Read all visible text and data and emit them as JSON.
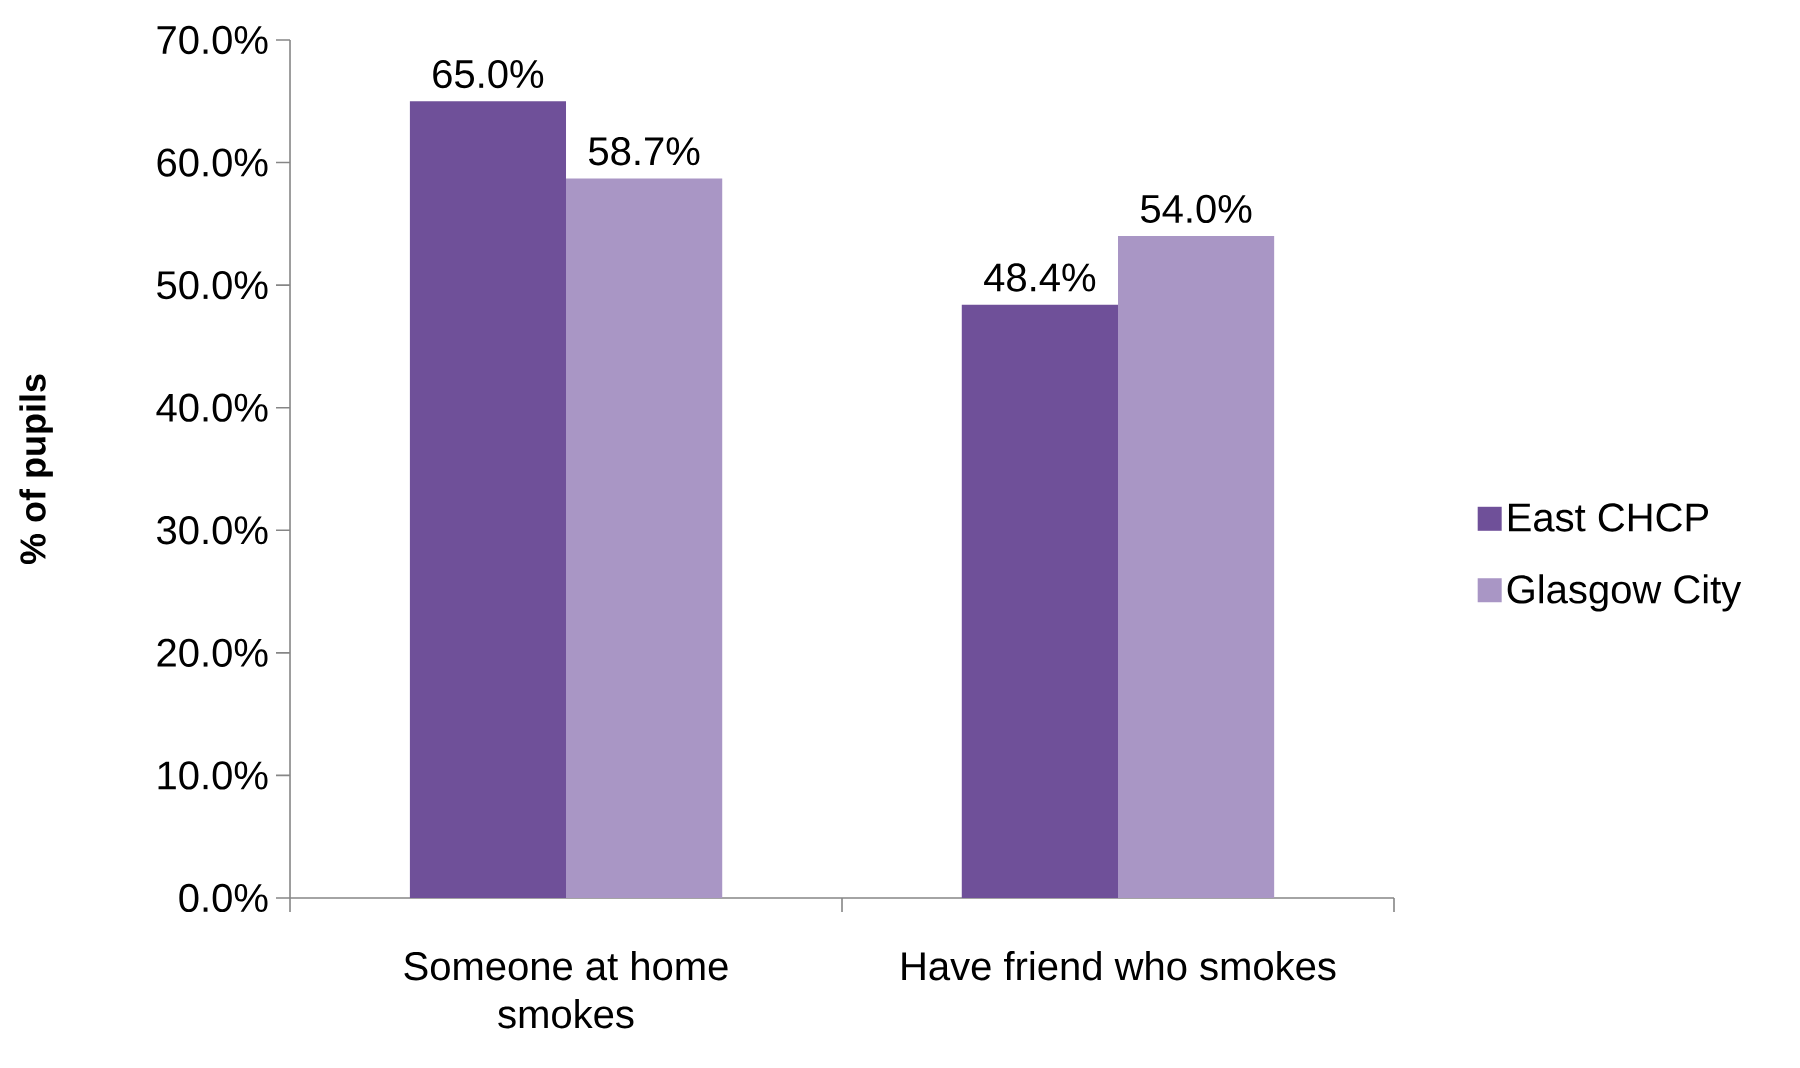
{
  "chart_data": {
    "type": "bar",
    "ylabel": "% of pupils",
    "categories": [
      "Someone at home smokes",
      "Have friend who smokes"
    ],
    "series": [
      {
        "name": "East CHCP",
        "color": "#6f5099",
        "values": [
          65.0,
          48.4
        ],
        "value_labels": [
          "65.0%",
          "48.4%"
        ]
      },
      {
        "name": "Glasgow City",
        "color": "#a996c5",
        "values": [
          58.7,
          54.0
        ],
        "value_labels": [
          "58.7%",
          "54.0%"
        ]
      }
    ],
    "ylim": [
      0,
      70
    ],
    "yticks": [
      {
        "value": 0,
        "label": "0.0%"
      },
      {
        "value": 10,
        "label": "10.0%"
      },
      {
        "value": 20,
        "label": "20.0%"
      },
      {
        "value": 30,
        "label": "30.0%"
      },
      {
        "value": 40,
        "label": "40.0%"
      },
      {
        "value": 50,
        "label": "50.0%"
      },
      {
        "value": 60,
        "label": "60.0%"
      },
      {
        "value": 70,
        "label": "70.0%"
      }
    ],
    "legend": "right"
  }
}
